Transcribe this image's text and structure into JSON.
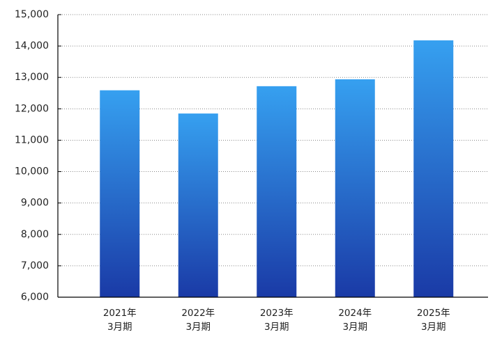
{
  "chart_data": {
    "type": "bar",
    "categories": [
      "2021年\n3月期",
      "2022年\n3月期",
      "2023年\n3月期",
      "2024年\n3月期",
      "2025年\n3月期"
    ],
    "values": [
      12590,
      11850,
      12720,
      12940,
      14180
    ],
    "color": [
      "#36a0f0",
      "#1a3aa6"
    ],
    "ylim": [
      6000,
      15000
    ],
    "yticks": [
      {
        "value": 6000,
        "label": "6,000"
      },
      {
        "value": 7000,
        "label": "7,000"
      },
      {
        "value": 8000,
        "label": "8,000"
      },
      {
        "value": 9000,
        "label": "9,000"
      },
      {
        "value": 10000,
        "label": "10,000"
      },
      {
        "value": 11000,
        "label": "11,000"
      },
      {
        "value": 12000,
        "label": "12,000"
      },
      {
        "value": 13000,
        "label": "13,000"
      },
      {
        "value": 14000,
        "label": "14,000"
      },
      {
        "value": 15000,
        "label": "15,000"
      }
    ],
    "grid": true
  }
}
